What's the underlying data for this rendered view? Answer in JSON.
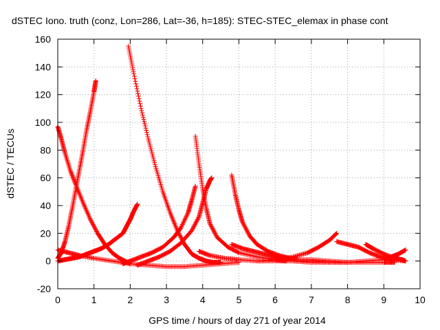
{
  "chart_data": {
    "type": "scatter",
    "title": "dSTEC Iono. truth (conz, Lon=286, Lat=-36, h=185): STEC-STEC_elemax in phase cont",
    "xlabel": "GPS time / hours of day 271 of year 2014",
    "ylabel": "dSTEC  / TECUs",
    "xlim": [
      0,
      10
    ],
    "ylim": [
      -20,
      160
    ],
    "xticks": [
      0,
      1,
      2,
      3,
      4,
      5,
      6,
      7,
      8,
      9,
      10
    ],
    "yticks": [
      -20,
      0,
      20,
      40,
      60,
      80,
      100,
      120,
      140,
      160
    ],
    "grid": true,
    "marker": "+",
    "colors": {
      "series": "#ff0000",
      "axis": "#000000",
      "grid": "#a0a0a0"
    },
    "series": [
      {
        "x": [
          0.0,
          0.1,
          0.2,
          0.3,
          0.4,
          0.5,
          0.6,
          0.7,
          0.8,
          0.9,
          1.0,
          1.05
        ],
        "y": [
          2,
          6,
          14,
          25,
          38,
          52,
          66,
          80,
          95,
          108,
          122,
          130
        ]
      },
      {
        "x": [
          0.0,
          0.1,
          0.2,
          0.35,
          0.5,
          0.7,
          0.9,
          1.1,
          1.3,
          1.5,
          1.7,
          1.85,
          2.0
        ],
        "y": [
          97,
          88,
          78,
          65,
          55,
          42,
          30,
          20,
          12,
          6,
          2,
          0,
          -2
        ]
      },
      {
        "x": [
          0.0,
          0.2,
          0.4,
          0.6,
          0.8,
          1.0,
          1.2,
          1.4,
          1.6,
          1.8,
          1.9,
          2.0,
          2.1,
          2.2
        ],
        "y": [
          0,
          1,
          2,
          3,
          5,
          7,
          9,
          12,
          16,
          20,
          25,
          30,
          36,
          41
        ]
      },
      {
        "x": [
          0.0,
          0.3,
          0.6,
          1.0,
          1.5,
          2.0,
          2.5,
          3.0,
          3.5,
          4.0,
          4.5,
          5.0
        ],
        "y": [
          8,
          6,
          4,
          2,
          0,
          -2,
          -3,
          -4,
          -4,
          -3,
          -2,
          -1
        ]
      },
      {
        "x": [
          1.95,
          2.1,
          2.3,
          2.5,
          2.7,
          2.9,
          3.1,
          3.3,
          3.5,
          3.7,
          3.9,
          4.1,
          4.3,
          4.5
        ],
        "y": [
          155,
          135,
          110,
          88,
          68,
          50,
          35,
          22,
          12,
          5,
          2,
          0,
          -1,
          -1
        ]
      },
      {
        "x": [
          1.8,
          2.0,
          2.3,
          2.6,
          2.9,
          3.2,
          3.4,
          3.6,
          3.7,
          3.8
        ],
        "y": [
          -2,
          0,
          3,
          6,
          10,
          17,
          24,
          35,
          44,
          54
        ]
      },
      {
        "x": [
          2.2,
          2.5,
          2.8,
          3.1,
          3.4,
          3.7,
          3.9,
          4.0,
          4.1,
          4.2,
          4.25
        ],
        "y": [
          -3,
          0,
          3,
          7,
          13,
          22,
          32,
          42,
          52,
          58,
          60
        ]
      },
      {
        "x": [
          3.8,
          3.9,
          4.0,
          4.1,
          4.2,
          4.4,
          4.7,
          5.0,
          5.5,
          6.0,
          6.3
        ],
        "y": [
          90,
          70,
          52,
          38,
          27,
          17,
          10,
          6,
          3,
          1,
          0
        ]
      },
      {
        "x": [
          4.8,
          4.9,
          5.0,
          5.1,
          5.3,
          5.5,
          5.8,
          6.1,
          6.4
        ],
        "y": [
          62,
          48,
          37,
          28,
          18,
          12,
          7,
          4,
          2
        ]
      },
      {
        "x": [
          3.9,
          4.2,
          4.6,
          5.0,
          5.5,
          6.0,
          6.5,
          7.0,
          7.5,
          8.0
        ],
        "y": [
          7,
          4,
          2,
          1,
          0,
          0,
          0,
          -1,
          -1,
          -1
        ]
      },
      {
        "x": [
          4.8,
          5.1,
          5.4,
          5.7,
          6.0,
          6.3,
          6.6
        ],
        "y": [
          12,
          9,
          7,
          5,
          3,
          2,
          2
        ]
      },
      {
        "x": [
          5.5,
          6.0,
          6.5,
          6.9,
          7.2,
          7.5,
          7.7
        ],
        "y": [
          0,
          1,
          3,
          6,
          10,
          15,
          20
        ]
      },
      {
        "x": [
          7.7,
          8.0,
          8.3,
          8.6,
          8.9,
          9.2,
          9.6
        ],
        "y": [
          14,
          12,
          10,
          6,
          3,
          1,
          0
        ]
      },
      {
        "x": [
          8.5,
          8.7,
          9.0,
          9.3,
          9.5,
          9.6
        ],
        "y": [
          12,
          9,
          5,
          2,
          1,
          0
        ]
      },
      {
        "x": [
          6.5,
          7.0,
          7.5,
          8.0,
          8.5,
          9.0,
          9.2,
          9.4,
          9.6
        ],
        "y": [
          0,
          0,
          -1,
          -1,
          0,
          1,
          3,
          5,
          8
        ]
      },
      {
        "x": [
          6.0,
          6.5,
          7.0,
          7.5,
          8.0,
          8.5,
          9.0,
          9.3
        ],
        "y": [
          2,
          1,
          1,
          0,
          -1,
          -1,
          -1,
          -1
        ]
      }
    ]
  }
}
